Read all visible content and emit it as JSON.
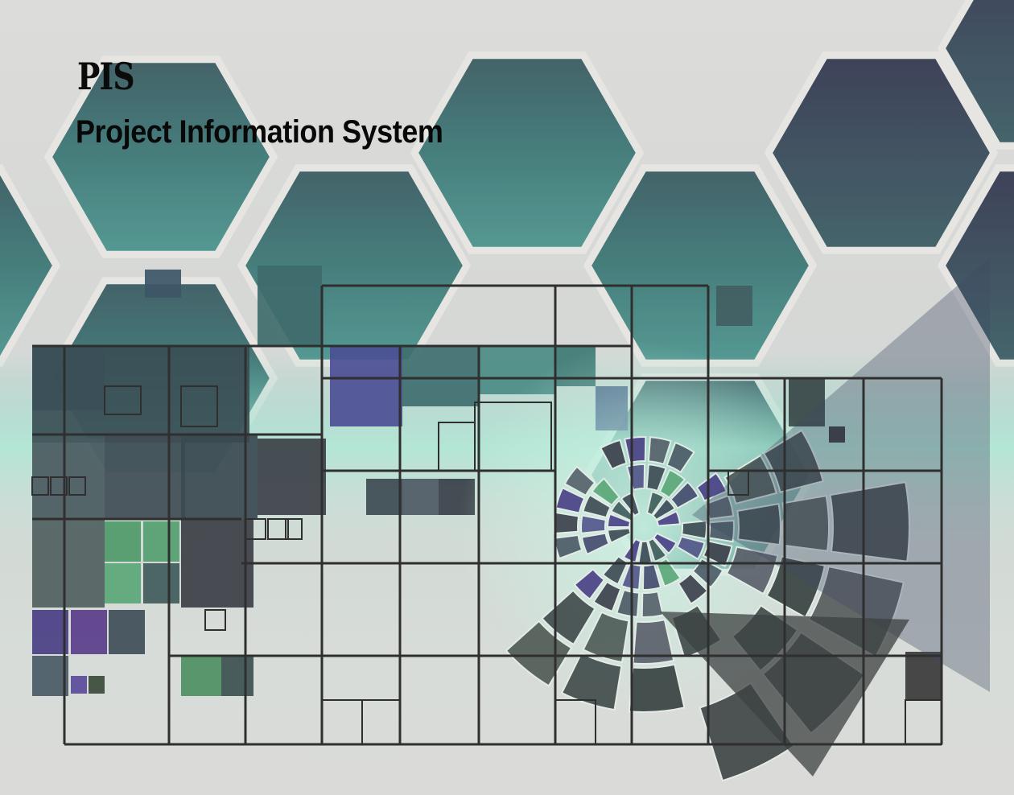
{
  "brand": {
    "abbreviation": "PIS",
    "title": "Project Information System"
  },
  "palette": {
    "background": "#dadad8",
    "hex_teal": "#3f6e6c",
    "hex_slate": "#3b4358",
    "grid_line": "#2e2e2e",
    "accent_green": "#4f9a69",
    "accent_purple": "#4a3f86",
    "glow_mint": "#9ee6cf"
  }
}
